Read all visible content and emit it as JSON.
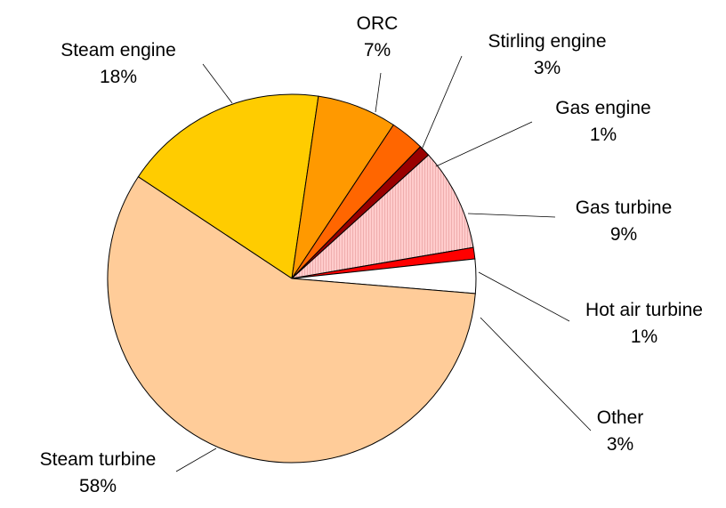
{
  "chart_data": {
    "type": "pie",
    "title": "",
    "slices": [
      {
        "label": "Steam engine",
        "value": 18,
        "value_label": "18%",
        "color": "#FFCC00"
      },
      {
        "label": "ORC",
        "value": 7,
        "value_label": "7%",
        "color": "#FF9900"
      },
      {
        "label": "Stirling engine",
        "value": 3,
        "value_label": "3%",
        "color": "#FF6600"
      },
      {
        "label": "Gas engine",
        "value": 1,
        "value_label": "1%",
        "color": "#990000"
      },
      {
        "label": "Gas turbine",
        "value": 9,
        "value_label": "9%",
        "color": "#FFCCCC",
        "pattern": "vertical-hatch"
      },
      {
        "label": "Hot air turbine",
        "value": 1,
        "value_label": "1%",
        "color": "#FF0000"
      },
      {
        "label": "Other",
        "value": 3,
        "value_label": "3%",
        "color": "#FFFFFF"
      },
      {
        "label": "Steam turbine",
        "value": 58,
        "value_label": "58%",
        "color": "#FFCC99"
      }
    ]
  }
}
